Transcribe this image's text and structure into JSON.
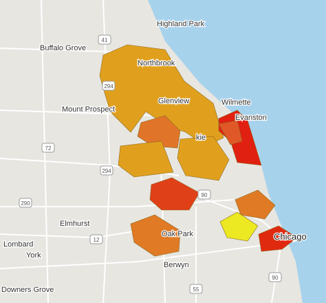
{
  "places": [
    {
      "label": "Highland Park"
    },
    {
      "label": "Buffalo Grove"
    },
    {
      "label": "Northbrook"
    },
    {
      "label": "Glenview"
    },
    {
      "label": "Wilmette"
    },
    {
      "label": "Mount Prospect"
    },
    {
      "label": "Evanston"
    },
    {
      "label": "kie"
    },
    {
      "label": "Chicago"
    },
    {
      "label": "Oak Park"
    },
    {
      "label": "Elmhurst"
    },
    {
      "label": "Lombard"
    },
    {
      "label": "York"
    },
    {
      "label": "Berwyn"
    },
    {
      "label": "Downers Grove"
    }
  ],
  "shields": [
    {
      "label": "41"
    },
    {
      "label": "294"
    },
    {
      "label": "72"
    },
    {
      "label": "294"
    },
    {
      "label": "90"
    },
    {
      "label": "290"
    },
    {
      "label": "12"
    },
    {
      "label": "55"
    },
    {
      "label": "90"
    }
  ]
}
